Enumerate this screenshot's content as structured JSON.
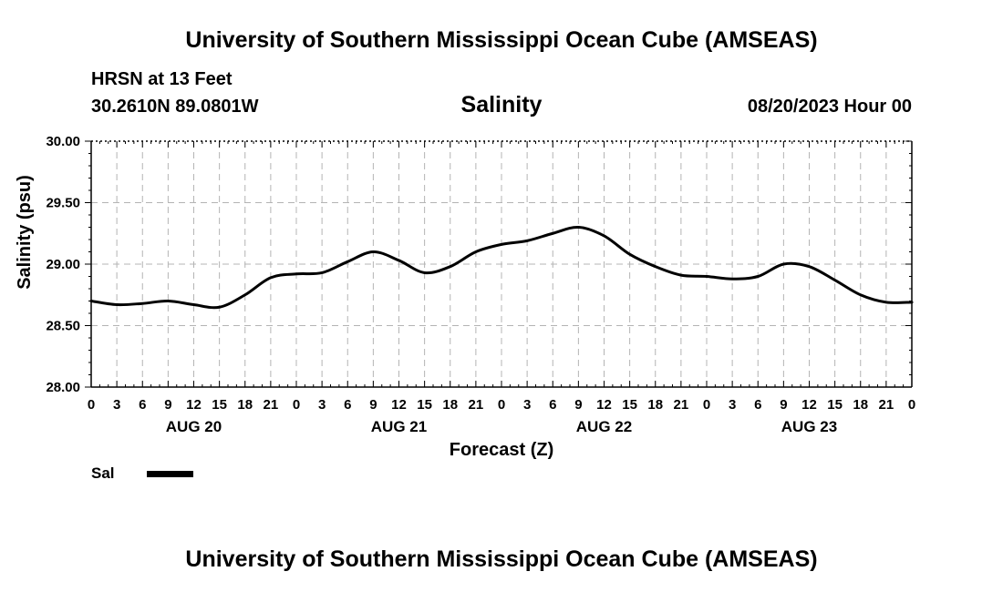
{
  "header": {
    "title": "University of Southern Mississippi Ocean Cube (AMSEAS)",
    "station": "HRSN at 13 Feet",
    "coords": "30.2610N  89.0801W",
    "parameter": "Salinity",
    "datetime": "08/20/2023 Hour 00"
  },
  "footer": {
    "title": "University of Southern Mississippi Ocean Cube (AMSEAS)"
  },
  "legend": {
    "label": "Sal",
    "color": "#000000"
  },
  "chart_data": {
    "type": "line",
    "title": "Salinity",
    "xlabel": "Forecast (Z)",
    "ylabel": "Salinity (psu)",
    "ylim": [
      28.0,
      30.0
    ],
    "yticks": [
      "28.00",
      "28.50",
      "29.00",
      "29.50",
      "30.00"
    ],
    "xlim": [
      0,
      96
    ],
    "xtick_labels": [
      "0",
      "3",
      "6",
      "9",
      "12",
      "15",
      "18",
      "21",
      "0",
      "3",
      "6",
      "9",
      "12",
      "15",
      "18",
      "21",
      "0",
      "3",
      "6",
      "9",
      "12",
      "15",
      "18",
      "21",
      "0",
      "3",
      "6",
      "9",
      "12",
      "15",
      "18",
      "21",
      "0"
    ],
    "day_labels": [
      {
        "label": "AUG 20",
        "hour": 12
      },
      {
        "label": "AUG 21",
        "hour": 36
      },
      {
        "label": "AUG 22",
        "hour": 60
      },
      {
        "label": "AUG 23",
        "hour": 84
      }
    ],
    "grid": true,
    "series": [
      {
        "name": "Sal",
        "x": [
          0,
          3,
          6,
          9,
          12,
          15,
          18,
          21,
          24,
          27,
          30,
          33,
          36,
          39,
          42,
          45,
          48,
          51,
          54,
          57,
          60,
          63,
          66,
          69,
          72,
          75,
          78,
          81,
          84,
          87,
          90,
          93,
          96
        ],
        "values": [
          28.7,
          28.67,
          28.68,
          28.7,
          28.67,
          28.65,
          28.75,
          28.89,
          28.92,
          28.93,
          29.02,
          29.1,
          29.03,
          28.93,
          28.98,
          29.1,
          29.16,
          29.19,
          29.25,
          29.3,
          29.23,
          29.08,
          28.98,
          28.91,
          28.9,
          28.88,
          28.9,
          29.0,
          28.98,
          28.87,
          28.75,
          28.69,
          28.69
        ]
      }
    ]
  }
}
